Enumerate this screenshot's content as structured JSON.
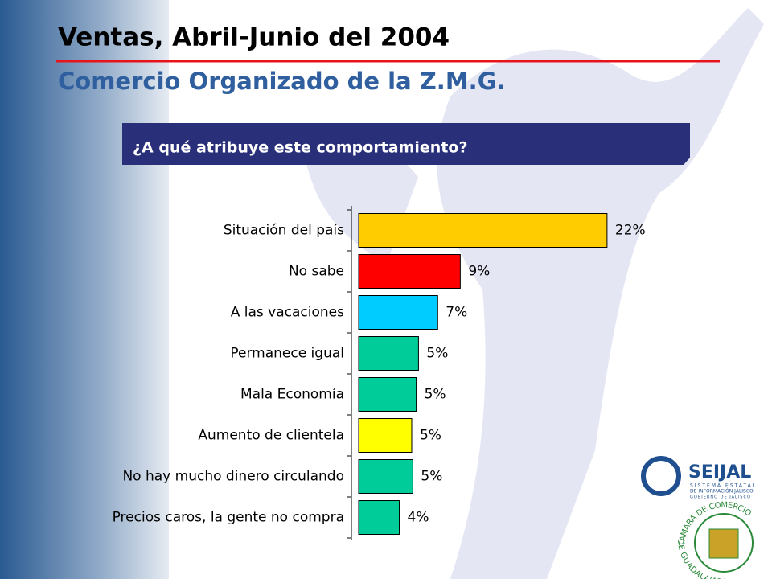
{
  "chart_data": {
    "type": "hbar",
    "title": "Ventas, Abril-Junio del 2004",
    "subtitle": "Comercio Organizado de la Z.M.G.",
    "question": "¿A qué atribuye este comportamiento?",
    "categories": [
      "Situación del país",
      "No sabe",
      "A las vacaciones",
      "Permanece igual",
      "Mala Economía",
      "Aumento de clientela",
      "No hay mucho dinero circulando",
      "Precios caros, la gente no compra"
    ],
    "values": [
      22,
      9,
      7,
      5.3,
      5.1,
      4.7,
      4.8,
      3.6
    ],
    "value_labels": [
      "22%",
      "9%",
      "7%",
      "5%",
      "5%",
      "5%",
      "5%",
      "4%"
    ],
    "colors": [
      "#ffcc00",
      "#ff0000",
      "#00ccff",
      "#00cc99",
      "#00cc99",
      "#ffff00",
      "#00cc99",
      "#00cc99"
    ],
    "xlim": [
      0,
      25
    ]
  },
  "logos": {
    "seijal": {
      "name": "SEIJAL",
      "line1": "SISTEMA ESTATAL",
      "line2": "DE INFORMACIÓN JALISCO",
      "line3": "GOBIERNO DE JALISCO"
    },
    "camara": {
      "top": "CAMARA DE COMERCIO",
      "bottom": "DE GUADALAJARA"
    }
  }
}
